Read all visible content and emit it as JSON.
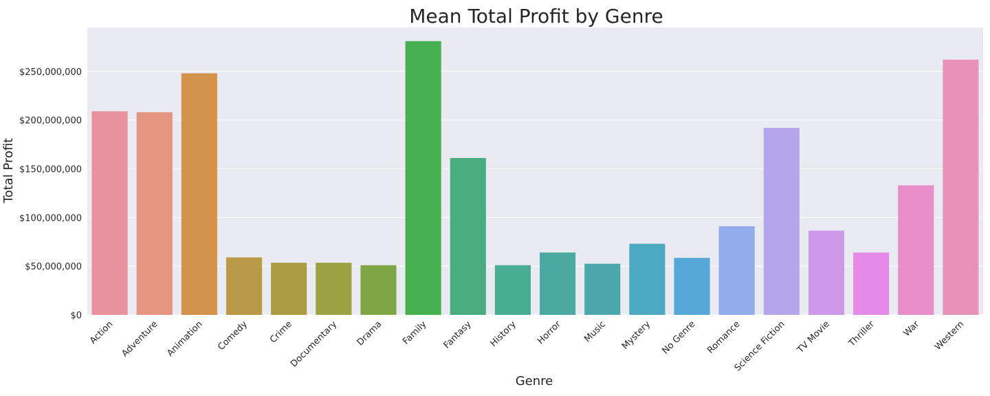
{
  "chart_data": {
    "type": "bar",
    "title": "Mean Total Profit by Genre",
    "xlabel": "Genre",
    "ylabel": "Total Profit",
    "ylim": [
      0,
      295000000
    ],
    "yticks": [
      0,
      50000000,
      100000000,
      150000000,
      200000000,
      250000000
    ],
    "ytick_labels": [
      "$0",
      "$50,000,000",
      "$100,000,000",
      "$150,000,000",
      "$200,000,000",
      "$250,000,000"
    ],
    "grid": true,
    "legend": "none",
    "plot_background": "#eaeaf2",
    "gridline_color": "#ffffff",
    "categories": [
      "Action",
      "Adventure",
      "Animation",
      "Comedy",
      "Crime",
      "Documentary",
      "Drama",
      "Family",
      "Fantasy",
      "History",
      "Horror",
      "Music",
      "Mystery",
      "No Genre",
      "Romance",
      "Science Fiction",
      "TV Movie",
      "Thriller",
      "War",
      "Western"
    ],
    "values": [
      209000000,
      208000000,
      248000000,
      59000000,
      53500000,
      53500000,
      51000000,
      281000000,
      161000000,
      51000000,
      64000000,
      52500000,
      73000000,
      58500000,
      91000000,
      192000000,
      86500000,
      64000000,
      133000000,
      262000000
    ],
    "colors": [
      "#e8929d",
      "#e5957f",
      "#d4934a",
      "#bb9a47",
      "#ab9c42",
      "#9aa242",
      "#7fa644",
      "#47b051",
      "#48ad7e",
      "#49ae91",
      "#4aa9a1",
      "#4ba9ae",
      "#4ca9c1",
      "#55a8d7",
      "#93acec",
      "#b5a6ec",
      "#ce98e8",
      "#e58ae6",
      "#e88ec8",
      "#e892b8"
    ]
  }
}
